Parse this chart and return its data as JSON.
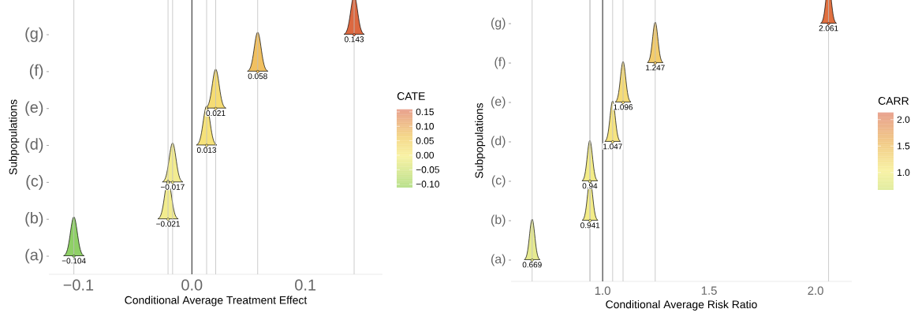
{
  "chart_data": [
    {
      "type": "scatter",
      "orientation": "horizontal",
      "xlabel": "Conditional Average Treatment Effect",
      "ylabel": "Subpopulations",
      "clabel": "CATE",
      "categories": [
        "(g)",
        "(f)",
        "(e)",
        "(d)",
        "(c)",
        "(b)",
        "(a)"
      ],
      "values": [
        0.143,
        0.058,
        0.021,
        0.013,
        -0.017,
        -0.021,
        -0.104
      ],
      "value_labels": [
        "0.143",
        "0.058",
        "0.021",
        "0.013",
        "−0.017",
        "−0.021",
        "−0.104"
      ],
      "colors": [
        "#dc6840",
        "#f1c060",
        "#f5dc74",
        "#f6e27a",
        "#f3ec90",
        "#f2ec8e",
        "#8fd066"
      ],
      "xlim": [
        -0.126,
        0.168
      ],
      "xticks": [
        {
          "value": -0.1,
          "label": "−0.1"
        },
        {
          "value": 0,
          "label": "0.0"
        },
        {
          "value": 0.1,
          "label": "0.1"
        }
      ],
      "ref_lines": [
        {
          "axis": "x",
          "value": 0,
          "color": "#000000"
        }
      ],
      "clim": [
        -0.112,
        0.158
      ],
      "cticks": [
        {
          "value": 0.15,
          "label": "0.15"
        },
        {
          "value": 0.1,
          "label": "0.10"
        },
        {
          "value": 0.05,
          "label": "0.05"
        },
        {
          "value": 0,
          "label": "0.00"
        },
        {
          "value": -0.05,
          "label": "−0.05"
        },
        {
          "value": -0.1,
          "label": "−0.10"
        }
      ]
    },
    {
      "type": "scatter",
      "orientation": "horizontal",
      "xlabel": "Conditional Average Risk Ratio",
      "ylabel": "Subpopulations",
      "clabel": "CARR",
      "categories": [
        "(g)",
        "(f)",
        "(e)",
        "(d)",
        "(c)",
        "(b)",
        "(a)"
      ],
      "values": [
        2.061,
        1.247,
        1.096,
        1.047,
        0.94,
        0.941,
        0.669
      ],
      "value_labels": [
        "2.061",
        "1.247",
        "1.096",
        "1.047",
        "0.94",
        "0.941",
        "0.669"
      ],
      "colors": [
        "#e07040",
        "#f3cc6c",
        "#f6dc78",
        "#f6e480",
        "#f3ec88",
        "#f3ec88",
        "#e6ea90"
      ],
      "xlim": [
        0.57,
        2.17
      ],
      "xticks": [
        {
          "value": 1,
          "label": "1.0"
        },
        {
          "value": 1.5,
          "label": "1.5"
        },
        {
          "value": 2,
          "label": "2.0"
        }
      ],
      "ref_lines": [
        {
          "axis": "x",
          "value": 1,
          "color": "#000000"
        }
      ],
      "clim": [
        0.67,
        2.13
      ],
      "cticks": [
        {
          "value": 1,
          "label": "1.0"
        },
        {
          "value": 1.5,
          "label": "1.5"
        },
        {
          "value": 2,
          "label": "2.0"
        }
      ]
    }
  ]
}
